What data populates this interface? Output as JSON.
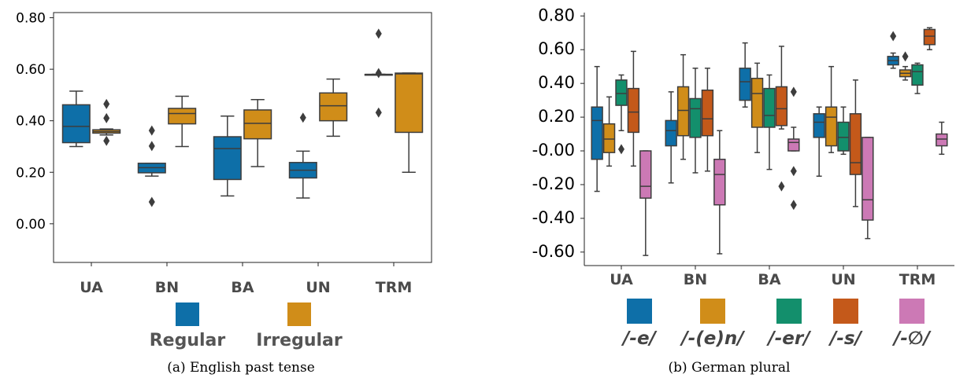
{
  "chart_data": [
    {
      "type": "box",
      "caption": "(a) English past tense",
      "categories": [
        "UA",
        "BN",
        "BA",
        "UN",
        "TRM"
      ],
      "yticks": [
        "0.00",
        "0.20",
        "0.40",
        "0.60",
        "0.80"
      ],
      "ylim": [
        -0.15,
        0.82
      ],
      "legend_position": "bottom",
      "series": [
        {
          "name": "Regular",
          "color": "#0e6fa8",
          "boxes": [
            {
              "whislo": 0.3,
              "q1": 0.315,
              "med": 0.378,
              "q3": 0.462,
              "whishi": 0.515,
              "fliers": []
            },
            {
              "whislo": 0.185,
              "q1": 0.198,
              "med": 0.218,
              "q3": 0.235,
              "whishi": 0.235,
              "fliers": [
                0.362,
                0.302,
                0.085
              ]
            },
            {
              "whislo": 0.108,
              "q1": 0.172,
              "med": 0.292,
              "q3": 0.338,
              "whishi": 0.418,
              "fliers": []
            },
            {
              "whislo": 0.1,
              "q1": 0.178,
              "med": 0.208,
              "q3": 0.238,
              "whishi": 0.282,
              "fliers": [
                0.412
              ]
            },
            {
              "whislo": 0.58,
              "q1": 0.58,
              "med": 0.58,
              "q3": 0.58,
              "whishi": 0.58,
              "fliers": [
                0.738,
                0.585,
                0.432
              ]
            }
          ]
        },
        {
          "name": "Irregular",
          "color": "#d08d19",
          "boxes": [
            {
              "whislo": 0.345,
              "q1": 0.352,
              "med": 0.358,
              "q3": 0.365,
              "whishi": 0.368,
              "fliers": [
                0.465,
                0.41,
                0.322
              ]
            },
            {
              "whislo": 0.3,
              "q1": 0.388,
              "med": 0.428,
              "q3": 0.448,
              "whishi": 0.495,
              "fliers": []
            },
            {
              "whislo": 0.222,
              "q1": 0.33,
              "med": 0.39,
              "q3": 0.442,
              "whishi": 0.482,
              "fliers": []
            },
            {
              "whislo": 0.34,
              "q1": 0.4,
              "med": 0.458,
              "q3": 0.508,
              "whishi": 0.562,
              "fliers": []
            },
            {
              "whislo": 0.2,
              "q1": 0.355,
              "med": 0.582,
              "q3": 0.585,
              "whishi": 0.585,
              "fliers": []
            }
          ]
        }
      ]
    },
    {
      "type": "box",
      "caption": "(b) German plural",
      "categories": [
        "UA",
        "BN",
        "BA",
        "UN",
        "TRM"
      ],
      "yticks": [
        "-0.60",
        "-0.40",
        "-0.20",
        "-0.00",
        "0.20",
        "0.40",
        "0.60",
        "0.80"
      ],
      "ylim": [
        -0.68,
        0.82
      ],
      "legend_position": "bottom",
      "series": [
        {
          "name": "/-e/",
          "color": "#0e6fa8",
          "boxes": [
            {
              "whislo": -0.24,
              "q1": -0.05,
              "med": 0.18,
              "q3": 0.26,
              "whishi": 0.5,
              "fliers": []
            },
            {
              "whislo": -0.19,
              "q1": 0.03,
              "med": 0.12,
              "q3": 0.18,
              "whishi": 0.35,
              "fliers": []
            },
            {
              "whislo": 0.26,
              "q1": 0.3,
              "med": 0.41,
              "q3": 0.49,
              "whishi": 0.64,
              "fliers": []
            },
            {
              "whislo": -0.15,
              "q1": 0.08,
              "med": 0.17,
              "q3": 0.22,
              "whishi": 0.26,
              "fliers": []
            },
            {
              "whislo": 0.49,
              "q1": 0.51,
              "med": 0.535,
              "q3": 0.56,
              "whishi": 0.58,
              "fliers": [
                0.68
              ]
            }
          ]
        },
        {
          "name": "/-(e)n/",
          "color": "#d08d19",
          "boxes": [
            {
              "whislo": -0.09,
              "q1": -0.01,
              "med": 0.07,
              "q3": 0.16,
              "whishi": 0.32,
              "fliers": []
            },
            {
              "whislo": -0.05,
              "q1": 0.09,
              "med": 0.24,
              "q3": 0.38,
              "whishi": 0.57,
              "fliers": []
            },
            {
              "whislo": -0.01,
              "q1": 0.14,
              "med": 0.34,
              "q3": 0.43,
              "whishi": 0.52,
              "fliers": []
            },
            {
              "whislo": -0.01,
              "q1": 0.03,
              "med": 0.2,
              "q3": 0.26,
              "whishi": 0.5,
              "fliers": []
            },
            {
              "whislo": 0.42,
              "q1": 0.44,
              "med": 0.46,
              "q3": 0.48,
              "whishi": 0.5,
              "fliers": [
                0.56
              ]
            }
          ]
        },
        {
          "name": "/-er/",
          "color": "#138f6c",
          "boxes": [
            {
              "whislo": 0.12,
              "q1": 0.27,
              "med": 0.34,
              "q3": 0.42,
              "whishi": 0.45,
              "fliers": [
                0.01
              ]
            },
            {
              "whislo": -0.13,
              "q1": 0.08,
              "med": 0.25,
              "q3": 0.31,
              "whishi": 0.49,
              "fliers": []
            },
            {
              "whislo": -0.11,
              "q1": 0.14,
              "med": 0.21,
              "q3": 0.37,
              "whishi": 0.45,
              "fliers": []
            },
            {
              "whislo": -0.02,
              "q1": 0.0,
              "med": 0.08,
              "q3": 0.17,
              "whishi": 0.26,
              "fliers": []
            },
            {
              "whislo": 0.34,
              "q1": 0.39,
              "med": 0.47,
              "q3": 0.51,
              "whishi": 0.52,
              "fliers": []
            }
          ]
        },
        {
          "name": "/-s/",
          "color": "#c4591a",
          "boxes": [
            {
              "whislo": -0.09,
              "q1": 0.11,
              "med": 0.23,
              "q3": 0.37,
              "whishi": 0.59,
              "fliers": []
            },
            {
              "whislo": -0.12,
              "q1": 0.09,
              "med": 0.19,
              "q3": 0.36,
              "whishi": 0.49,
              "fliers": []
            },
            {
              "whislo": 0.13,
              "q1": 0.15,
              "med": 0.25,
              "q3": 0.38,
              "whishi": 0.62,
              "fliers": [
                -0.21
              ]
            },
            {
              "whislo": -0.33,
              "q1": -0.14,
              "med": -0.07,
              "q3": 0.22,
              "whishi": 0.42,
              "fliers": []
            },
            {
              "whislo": 0.6,
              "q1": 0.63,
              "med": 0.68,
              "q3": 0.72,
              "whishi": 0.73,
              "fliers": []
            }
          ]
        },
        {
          "name": "/-∅/",
          "color": "#cc79b5",
          "boxes": [
            {
              "whislo": -0.62,
              "q1": -0.28,
              "med": -0.21,
              "q3": 0.0,
              "whishi": 0.0,
              "fliers": []
            },
            {
              "whislo": -0.61,
              "q1": -0.32,
              "med": -0.14,
              "q3": -0.05,
              "whishi": 0.12,
              "fliers": []
            },
            {
              "whislo": 0.0,
              "q1": 0.0,
              "med": 0.05,
              "q3": 0.07,
              "whishi": 0.14,
              "fliers": [
                0.35,
                -0.12,
                -0.32
              ]
            },
            {
              "whislo": -0.52,
              "q1": -0.41,
              "med": -0.29,
              "q3": 0.08,
              "whishi": 0.08,
              "fliers": []
            },
            {
              "whislo": -0.02,
              "q1": 0.03,
              "med": 0.07,
              "q3": 0.1,
              "whishi": 0.17,
              "fliers": []
            }
          ]
        }
      ]
    }
  ]
}
